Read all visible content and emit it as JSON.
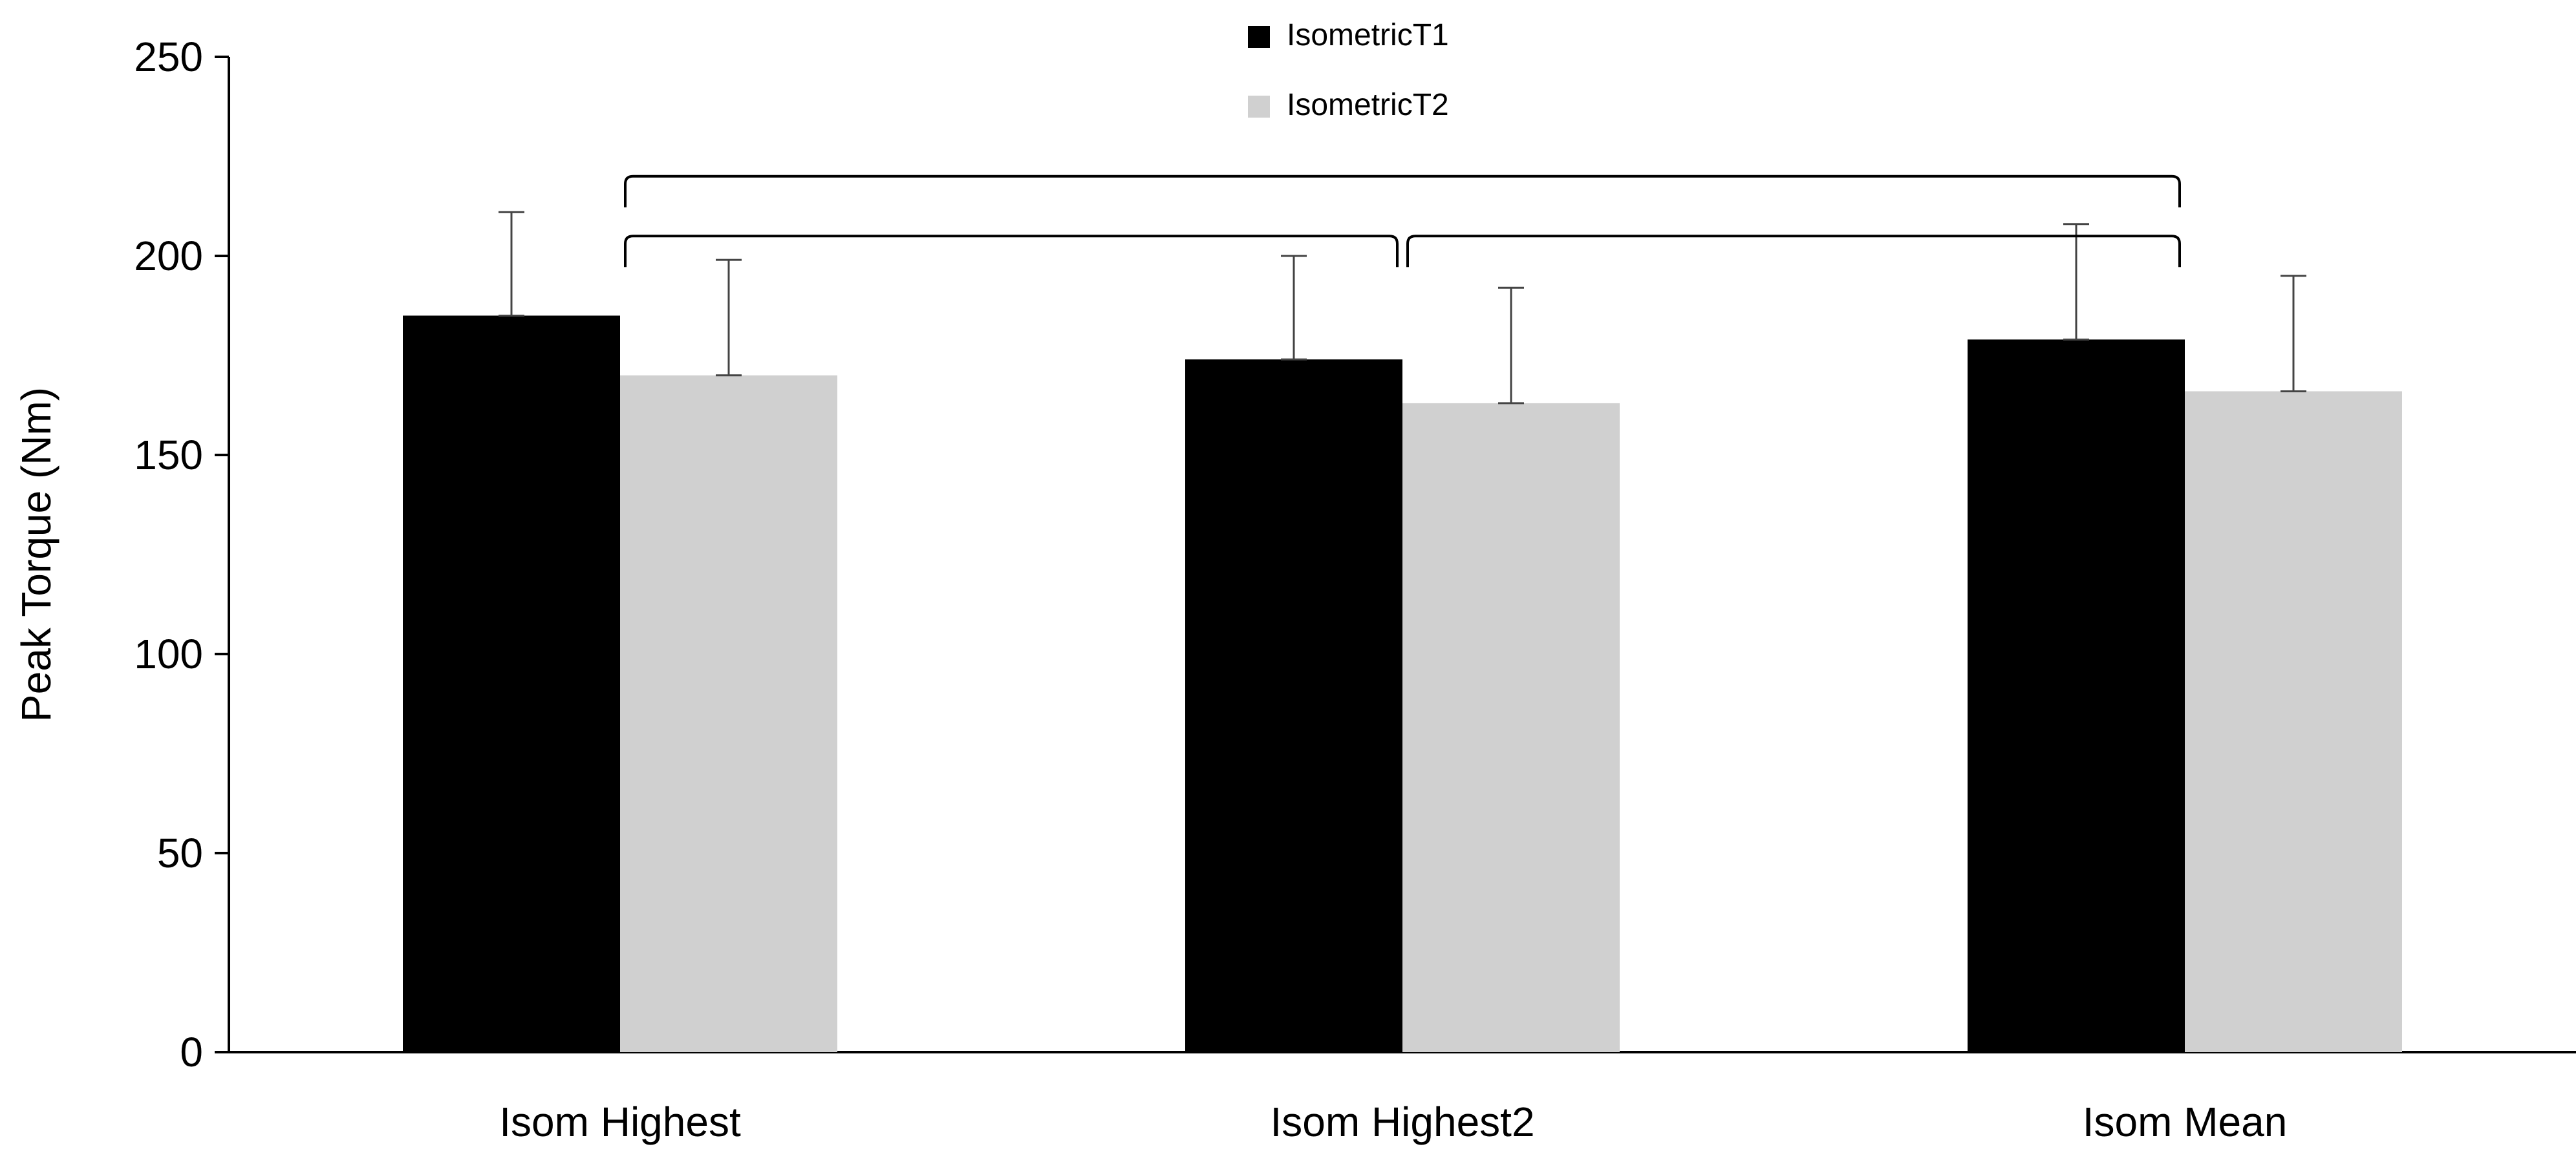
{
  "chart_data": {
    "type": "bar",
    "title": "",
    "xlabel": "",
    "ylabel": "Peak Torque (Nm)",
    "ylim": [
      0,
      250
    ],
    "yticks": [
      0,
      50,
      100,
      150,
      200,
      250
    ],
    "grid": false,
    "legend_position": "top-center",
    "categories": [
      "Isom Highest",
      "Isom Highest2",
      "Isom Mean"
    ],
    "series": [
      {
        "name": "IsometricT1",
        "color": "#000000",
        "values": [
          185,
          174,
          179
        ],
        "error": [
          26,
          26,
          29
        ]
      },
      {
        "name": "IsometricT2",
        "color": "#d0d0d0",
        "values": [
          170,
          163,
          166
        ],
        "error": [
          29,
          29,
          29
        ]
      }
    ],
    "significance_brackets": [
      {
        "from_category": 0,
        "to_category": 1,
        "y": 205
      },
      {
        "from_category": 1,
        "to_category": 2,
        "y": 205
      },
      {
        "from_category": 0,
        "to_category": 2,
        "y": 220
      }
    ]
  }
}
